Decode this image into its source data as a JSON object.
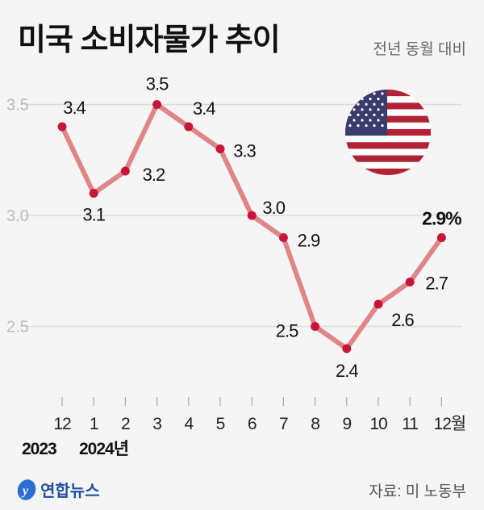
{
  "header": {
    "title": "미국 소비자물가 추이",
    "subtitle": "전년 동월 대비"
  },
  "footer": {
    "source": "자료: 미 노동부",
    "logo_text": "연합뉴스"
  },
  "colors": {
    "line": "#e08585",
    "point": "#c8163a",
    "grid": "#dddddd",
    "axis_tick": "#aaaaaa"
  },
  "chart_data": {
    "type": "line",
    "title": "미국 소비자물가 추이",
    "subtitle": "전년 동월 대비",
    "categories": [
      "12",
      "1",
      "2",
      "3",
      "4",
      "5",
      "6",
      "7",
      "8",
      "9",
      "10",
      "11",
      "12월"
    ],
    "year_labels": [
      "2023",
      "2024년"
    ],
    "values": [
      3.4,
      3.1,
      3.2,
      3.5,
      3.4,
      3.3,
      3.0,
      2.9,
      2.5,
      2.4,
      2.6,
      2.7,
      2.9
    ],
    "data_labels": [
      "3.4",
      "3.1",
      "3.2",
      "3.5",
      "3.4",
      "3.3",
      "3.0",
      "2.9",
      "2.5",
      "2.4",
      "2.6",
      "2.7",
      "2.9%"
    ],
    "yticks": [
      "3.5",
      "3.0",
      "2.5"
    ],
    "ytick_values": [
      3.5,
      3.0,
      2.5
    ],
    "ylim": [
      2.4,
      3.5
    ],
    "unit": "%",
    "grid": true,
    "xlabel": "",
    "ylabel": ""
  }
}
